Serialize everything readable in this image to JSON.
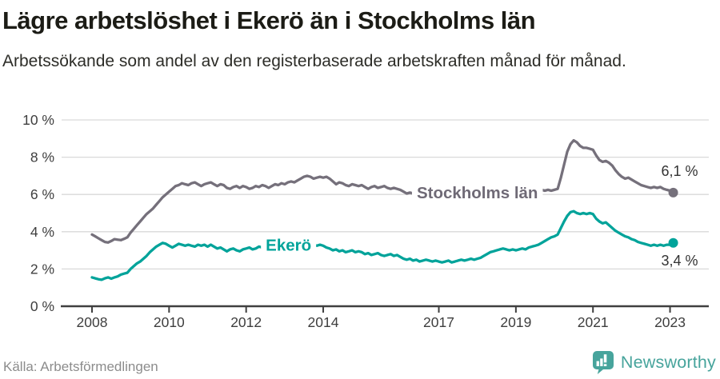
{
  "header": {
    "title": "Lägre arbetslöshet i Ekerö än i Stockholms län",
    "subtitle": "Arbetssökande som andel av den registerbaserade arbetskraften månad för månad."
  },
  "footer": {
    "source": "Källa: Arbetsförmedlingen",
    "brand": "Newsworthy"
  },
  "colors": {
    "stockholm": "#75707b",
    "stockholm_label": "#6f6a76",
    "ekero": "#00a39a",
    "grid": "#d9d9d9",
    "axis": "#3f3f3f",
    "tick_label": "#3e3e3e",
    "annotation": "#333333",
    "brand_teal": "#47a49c",
    "title_text": "#1c1c16",
    "source_text": "#8c8c8c",
    "background": "#ffffff"
  },
  "chart_data": {
    "type": "line",
    "title": "Lägre arbetslöshet i Ekerö än i Stockholms län",
    "subtitle": "Arbetssökande som andel av den registerbaserade arbetskraften månad för månad.",
    "unit": "%",
    "x_start_year": 2008,
    "points_per_year": 12,
    "xlim": [
      2007.6,
      2023.6
    ],
    "ylim": [
      0,
      10
    ],
    "grid": "horizontal-only",
    "legend_position": "inline-on-line",
    "xtick_labels": [
      "2008",
      "2010",
      "2012",
      "2014",
      "2017",
      "2019",
      "2021",
      "2023"
    ],
    "xtick_years": [
      2008,
      2010,
      2012,
      2014,
      2017,
      2019,
      2021,
      2023
    ],
    "ytick_values": [
      0,
      2,
      4,
      6,
      8,
      10
    ],
    "ytick_labels": [
      "0 %",
      "2 %",
      "4 %",
      "6 %",
      "8 %",
      "10 %"
    ],
    "series": [
      {
        "name": "Stockholms län",
        "color_key": "stockholm",
        "label_color_key": "stockholm_label",
        "end_label": "6,1 %",
        "end_label_side": "above",
        "label_anchor": {
          "year": 2018.0,
          "value": 6.1
        },
        "values": [
          3.85,
          3.75,
          3.65,
          3.55,
          3.45,
          3.42,
          3.5,
          3.6,
          3.57,
          3.55,
          3.62,
          3.7,
          3.95,
          4.15,
          4.35,
          4.55,
          4.75,
          4.95,
          5.1,
          5.25,
          5.45,
          5.65,
          5.85,
          6.0,
          6.15,
          6.3,
          6.45,
          6.5,
          6.6,
          6.55,
          6.5,
          6.6,
          6.65,
          6.55,
          6.45,
          6.55,
          6.6,
          6.65,
          6.55,
          6.45,
          6.55,
          6.5,
          6.35,
          6.3,
          6.4,
          6.45,
          6.35,
          6.45,
          6.4,
          6.3,
          6.35,
          6.45,
          6.4,
          6.5,
          6.45,
          6.35,
          6.45,
          6.55,
          6.5,
          6.6,
          6.55,
          6.65,
          6.7,
          6.65,
          6.75,
          6.85,
          6.95,
          7.0,
          6.95,
          6.85,
          6.9,
          6.95,
          6.9,
          6.95,
          6.85,
          6.7,
          6.55,
          6.65,
          6.6,
          6.5,
          6.45,
          6.55,
          6.5,
          6.45,
          6.5,
          6.4,
          6.3,
          6.4,
          6.45,
          6.35,
          6.4,
          6.45,
          6.35,
          6.3,
          6.35,
          6.3,
          6.25,
          6.15,
          6.05,
          6.1,
          6.05,
          6.0,
          6.05,
          6.0,
          5.95,
          6.0,
          6.05,
          6.0,
          5.95,
          6.0,
          5.95,
          5.9,
          5.95,
          6.0,
          6.05,
          6.0,
          6.05,
          6.1,
          6.05,
          6.1,
          6.05,
          6.1,
          6.05,
          6.1,
          6.15,
          6.1,
          6.15,
          6.1,
          6.15,
          6.2,
          6.15,
          6.2,
          6.15,
          6.2,
          6.25,
          6.2,
          6.25,
          6.2,
          6.25,
          6.3,
          6.25,
          6.2,
          6.25,
          6.2,
          6.25,
          6.3,
          6.9,
          7.6,
          8.3,
          8.7,
          8.9,
          8.8,
          8.6,
          8.5,
          8.5,
          8.45,
          8.4,
          8.1,
          7.85,
          7.75,
          7.8,
          7.7,
          7.55,
          7.3,
          7.1,
          6.95,
          6.85,
          6.9,
          6.8,
          6.7,
          6.6,
          6.5,
          6.45,
          6.4,
          6.35,
          6.4,
          6.35,
          6.4,
          6.3,
          6.25,
          6.2,
          6.1
        ]
      },
      {
        "name": "Ekerö",
        "color_key": "ekero",
        "label_color_key": "ekero",
        "end_label": "3,4 %",
        "end_label_side": "below",
        "label_anchor": {
          "year": 2013.1,
          "value": 3.28
        },
        "values": [
          1.55,
          1.5,
          1.45,
          1.42,
          1.5,
          1.55,
          1.48,
          1.55,
          1.6,
          1.7,
          1.75,
          1.8,
          2.0,
          2.15,
          2.3,
          2.4,
          2.55,
          2.7,
          2.9,
          3.05,
          3.2,
          3.3,
          3.4,
          3.35,
          3.25,
          3.15,
          3.25,
          3.35,
          3.3,
          3.25,
          3.3,
          3.25,
          3.2,
          3.3,
          3.25,
          3.3,
          3.2,
          3.3,
          3.2,
          3.1,
          3.15,
          3.05,
          2.95,
          3.05,
          3.1,
          3.0,
          2.95,
          3.05,
          3.1,
          3.15,
          3.05,
          3.1,
          3.2,
          3.15,
          3.1,
          3.2,
          3.25,
          3.15,
          3.2,
          3.3,
          3.25,
          3.3,
          3.35,
          3.3,
          3.25,
          3.3,
          3.35,
          3.3,
          3.35,
          3.3,
          3.25,
          3.3,
          3.25,
          3.15,
          3.1,
          3.0,
          3.05,
          2.95,
          3.0,
          2.9,
          2.95,
          3.0,
          2.9,
          2.95,
          2.9,
          2.8,
          2.85,
          2.75,
          2.8,
          2.85,
          2.75,
          2.7,
          2.75,
          2.8,
          2.7,
          2.75,
          2.65,
          2.55,
          2.5,
          2.55,
          2.45,
          2.5,
          2.4,
          2.45,
          2.5,
          2.45,
          2.4,
          2.45,
          2.4,
          2.35,
          2.4,
          2.45,
          2.35,
          2.4,
          2.45,
          2.5,
          2.45,
          2.5,
          2.55,
          2.5,
          2.55,
          2.6,
          2.7,
          2.8,
          2.9,
          2.95,
          3.0,
          3.05,
          3.1,
          3.05,
          3.0,
          3.05,
          3.0,
          3.05,
          3.1,
          3.05,
          3.15,
          3.2,
          3.25,
          3.3,
          3.4,
          3.5,
          3.6,
          3.7,
          3.75,
          3.85,
          4.2,
          4.55,
          4.85,
          5.05,
          5.1,
          5.0,
          4.95,
          5.0,
          4.95,
          5.0,
          4.95,
          4.7,
          4.55,
          4.45,
          4.5,
          4.35,
          4.2,
          4.05,
          3.95,
          3.85,
          3.75,
          3.7,
          3.6,
          3.55,
          3.45,
          3.4,
          3.35,
          3.3,
          3.25,
          3.3,
          3.25,
          3.3,
          3.25,
          3.3,
          3.3,
          3.4
        ]
      }
    ]
  }
}
